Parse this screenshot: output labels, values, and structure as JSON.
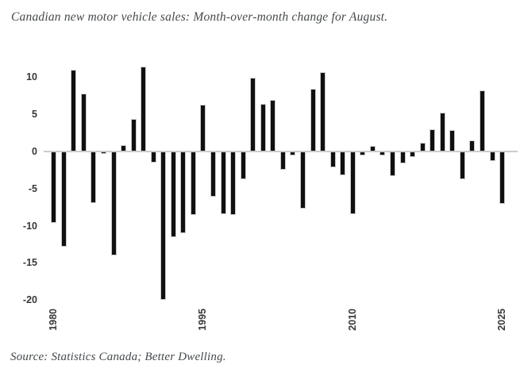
{
  "header": {
    "title": "Canadian new motor vehicle sales: Month-over-month change for August."
  },
  "footer": {
    "source": "Source: Statistics Canada; Better Dwelling."
  },
  "chart_data": {
    "type": "bar",
    "title": "Canadian new motor vehicle sales: Month-over-month change for August.",
    "xlabel": "",
    "ylabel": "",
    "ylim": [
      -21,
      12
    ],
    "grid": false,
    "legend": "none",
    "y_ticks": [
      10,
      5,
      0,
      -5,
      -10,
      -15,
      -20
    ],
    "x_tick_labels": [
      "1980",
      "1995",
      "2010",
      "2025"
    ],
    "categories": [
      "1980",
      "1981",
      "1982",
      "1983",
      "1984",
      "1985",
      "1986",
      "1987",
      "1988",
      "1989",
      "1990",
      "1991",
      "1992",
      "1993",
      "1994",
      "1995",
      "1996",
      "1997",
      "1998",
      "1999",
      "2000",
      "2001",
      "2002",
      "2003",
      "2004",
      "2005",
      "2006",
      "2007",
      "2008",
      "2009",
      "2010",
      "2011",
      "2012",
      "2013",
      "2014",
      "2015",
      "2016",
      "2017",
      "2018",
      "2019",
      "2020",
      "2021",
      "2022",
      "2023",
      "2024",
      "2025"
    ],
    "values": [
      -9.6,
      -12.8,
      11.0,
      7.8,
      -6.9,
      -0.3,
      -14.0,
      0.9,
      4.4,
      11.4,
      -1.5,
      -20.0,
      -11.5,
      -11.0,
      -8.5,
      6.3,
      -6.1,
      -8.4,
      -8.5,
      -3.7,
      9.9,
      6.4,
      6.9,
      -2.5,
      -0.5,
      -7.7,
      8.4,
      10.7,
      -2.1,
      -3.2,
      -8.4,
      -0.5,
      0.8,
      -0.5,
      -3.3,
      -1.6,
      -0.8,
      1.2,
      3.0,
      5.2,
      2.9,
      -3.7,
      1.5,
      8.2,
      -1.3,
      -7.1
    ],
    "bar_color": "#101010",
    "bar_border_color": "#c9c9c9",
    "axis_line_color": "#cccccc",
    "tick_text_color": "#383838",
    "title_text_color": "#45494c"
  }
}
